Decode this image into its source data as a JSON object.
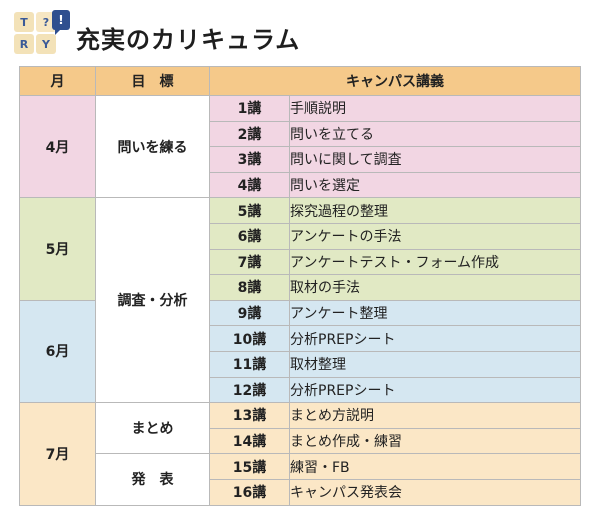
{
  "logo": {
    "letters": [
      "T",
      "?",
      "R",
      "Y"
    ],
    "badge": "!"
  },
  "page": {
    "title": "充実のカリキュラム"
  },
  "table": {
    "headers": {
      "month": "月",
      "goal": "目　標",
      "lecture": "キャンパス講義"
    },
    "months": {
      "apr": "4月",
      "may": "5月",
      "jun": "6月",
      "jul": "7月"
    },
    "goals": {
      "g1": "問いを練る",
      "g2": "調査・分析",
      "g3": "まとめ",
      "g4": "発　表"
    },
    "rows": [
      {
        "num": "1講",
        "topic": "手順説明"
      },
      {
        "num": "2講",
        "topic": "問いを立てる"
      },
      {
        "num": "3講",
        "topic": "問いに関して調査"
      },
      {
        "num": "4講",
        "topic": "問いを選定"
      },
      {
        "num": "5講",
        "topic": "探究過程の整理"
      },
      {
        "num": "6講",
        "topic": "アンケートの手法"
      },
      {
        "num": "7講",
        "topic": "アンケートテスト・フォーム作成"
      },
      {
        "num": "8講",
        "topic": "取材の手法"
      },
      {
        "num": "9講",
        "topic": "アンケート整理"
      },
      {
        "num": "10講",
        "topic": "分析PREPシート"
      },
      {
        "num": "11講",
        "topic": "取材整理"
      },
      {
        "num": "12講",
        "topic": "分析PREPシート"
      },
      {
        "num": "13講",
        "topic": "まとめ方説明"
      },
      {
        "num": "14講",
        "topic": "まとめ作成・練習"
      },
      {
        "num": "15講",
        "topic": "練習・FB"
      },
      {
        "num": "16講",
        "topic": "キャンパス発表会"
      }
    ]
  },
  "colors": {
    "header": "#f5c98a",
    "april": "#f2d6e3",
    "may": "#e1e9c4",
    "june": "#d5e7f1",
    "july": "#fbe7c6"
  }
}
